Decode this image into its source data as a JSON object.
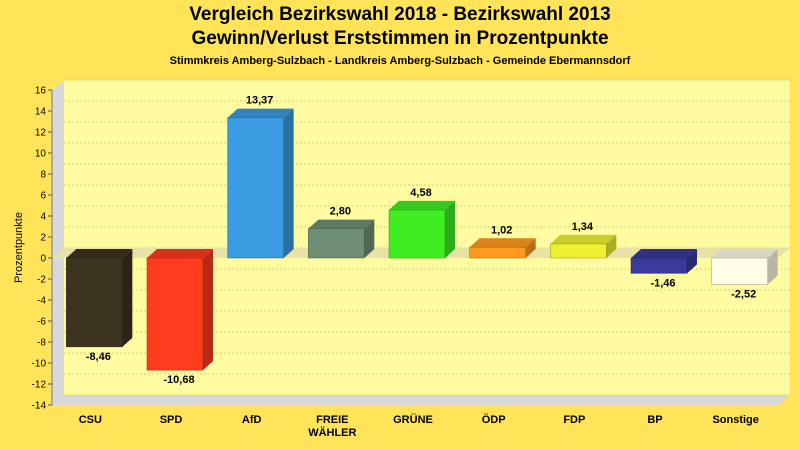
{
  "chart_data": {
    "type": "bar",
    "title": "Vergleich Bezirkswahl 2018 - Bezirkswahl 2013",
    "title2": "Gewinn/Verlust Erststimmen in Prozentpunkte",
    "subtitle": "Stimmkreis Amberg-Sulzbach - Landkreis Amberg-Sulzbach - Gemeinde Ebermannsdorf",
    "xlabel": "",
    "ylabel": "Prozentpunkte",
    "ylim": [
      -14,
      16
    ],
    "yticks": [
      16,
      14,
      12,
      10,
      8,
      6,
      4,
      2,
      0,
      -2,
      -4,
      -6,
      -8,
      -10,
      -12,
      -14
    ],
    "grid": true,
    "categories": [
      [
        "CSU"
      ],
      [
        "SPD"
      ],
      [
        "AfD"
      ],
      [
        "FREIE",
        "WÄHLER"
      ],
      [
        "GRÜNE"
      ],
      [
        "ÖDP"
      ],
      [
        "FDP"
      ],
      [
        "BP"
      ],
      [
        "Sonstige"
      ]
    ],
    "values": [
      -8.46,
      -10.68,
      13.37,
      2.8,
      4.58,
      1.02,
      1.34,
      -1.46,
      -2.52
    ],
    "value_labels": [
      "-8,46",
      "-10,68",
      "13,37",
      "2,80",
      "4,58",
      "1,02",
      "1,34",
      "-1,46",
      "-2,52"
    ],
    "colors": [
      "#3d3420",
      "#ff3b1e",
      "#3a9be0",
      "#6f8f74",
      "#3eee22",
      "#ff9a1e",
      "#eef030",
      "#3a3a9a",
      "#fffde8"
    ]
  }
}
